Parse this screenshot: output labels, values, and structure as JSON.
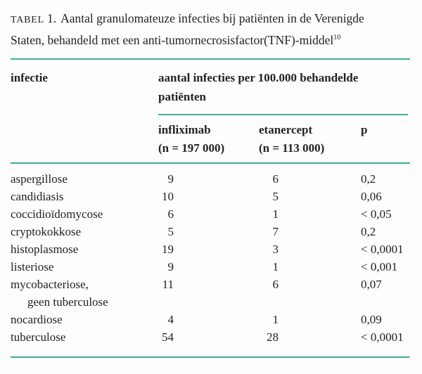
{
  "page": {
    "background": "#fdfdfd",
    "accent_color": "#3fae95",
    "text_color": "#222222"
  },
  "caption": {
    "label": "TABEL",
    "number": "1.",
    "line1": "Aantal granulomateuze infecties bij patiënten in de Verenigde",
    "line2": "Staten, behandeld met een anti-tumornecrosisfactor(TNF)-middel",
    "reference": "10"
  },
  "header": {
    "infection": "infectie",
    "group_line1": "aantal infecties per 100.000 behandelde",
    "group_line2": "patiënten",
    "col1_name": "infliximab",
    "col1_n": "(n = 197 000)",
    "col2_name": "etanercept",
    "col2_n": "(n = 113 000)",
    "col3_name": "p"
  },
  "rows": [
    {
      "infection": "aspergillose",
      "infliximab": "9",
      "etanercept": "6",
      "p": "0,2"
    },
    {
      "infection": "candidiasis",
      "infliximab": "10",
      "etanercept": "5",
      "p": "0,06"
    },
    {
      "infection": "coccidioïdomycose",
      "infliximab": "6",
      "etanercept": "1",
      "p": "< 0,05"
    },
    {
      "infection": "cryptokokkose",
      "infliximab": "5",
      "etanercept": "7",
      "p": "0,2"
    },
    {
      "infection": "histoplasmose",
      "infliximab": "19",
      "etanercept": "3",
      "p": "< 0,0001"
    },
    {
      "infection": "listeriose",
      "infliximab": "9",
      "etanercept": "1",
      "p": "< 0,001"
    },
    {
      "infection": "mycobacteriose,",
      "infection_line2": "geen tuberculose",
      "infliximab": "11",
      "etanercept": "6",
      "p": "0,07"
    },
    {
      "infection": "nocardiose",
      "infliximab": "4",
      "etanercept": "1",
      "p": "0,09"
    },
    {
      "infection": "tuberculose",
      "infliximab": "54",
      "etanercept": "28",
      "p": "< 0,0001"
    }
  ]
}
